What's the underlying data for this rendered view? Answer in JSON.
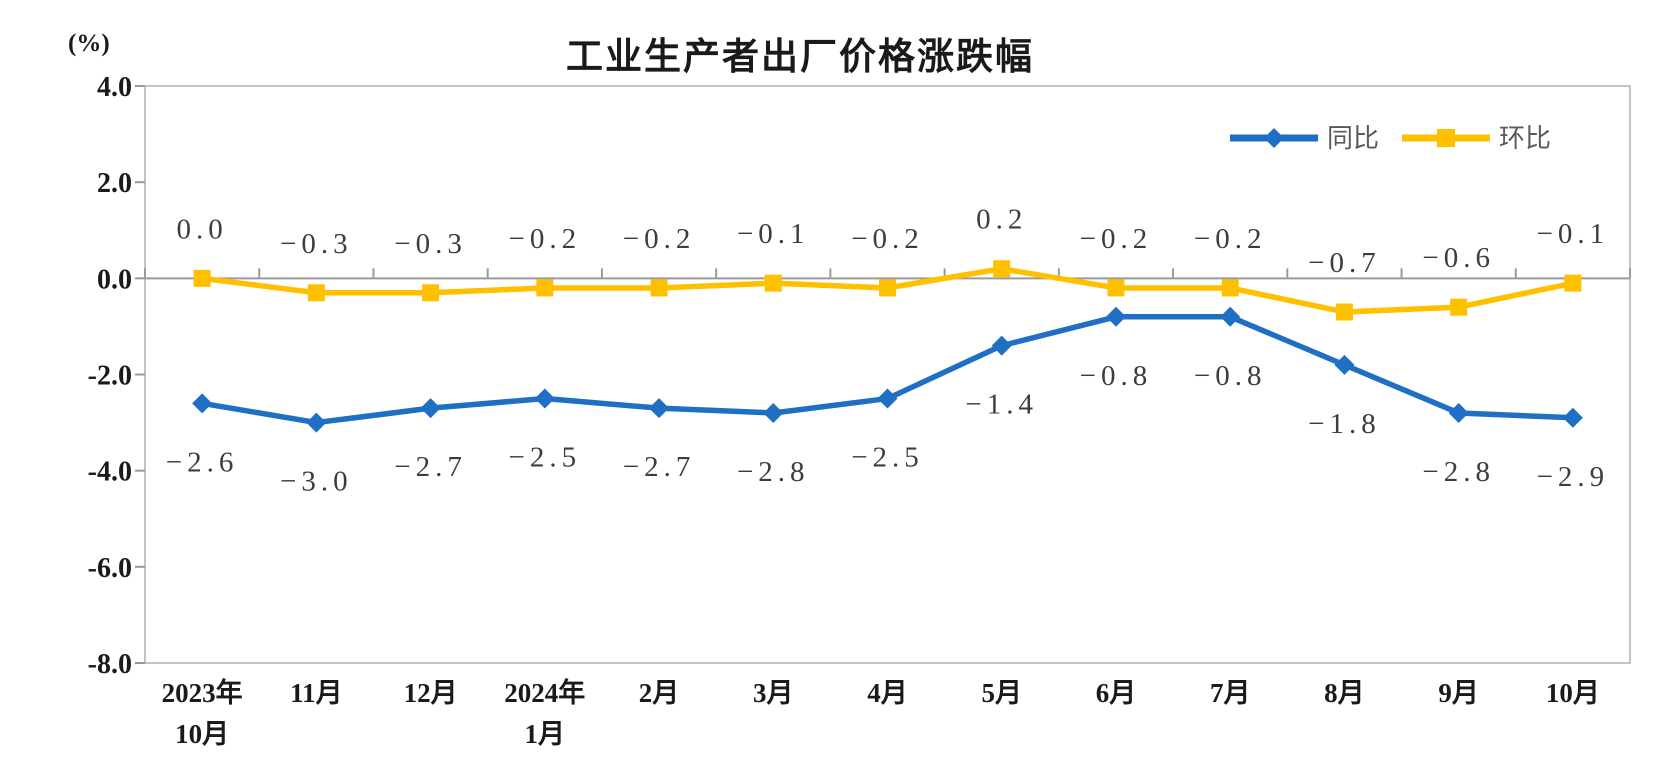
{
  "chart_data": {
    "type": "line",
    "title": "工业生产者出厂价格涨跌幅",
    "ylabel": "(%)",
    "categories": [
      [
        "2023年",
        "10月"
      ],
      [
        "11月"
      ],
      [
        "12月"
      ],
      [
        "2024年",
        "1月"
      ],
      [
        "2月"
      ],
      [
        "3月"
      ],
      [
        "4月"
      ],
      [
        "5月"
      ],
      [
        "6月"
      ],
      [
        "7月"
      ],
      [
        "8月"
      ],
      [
        "9月"
      ],
      [
        "10月"
      ]
    ],
    "series": [
      {
        "name": "同比",
        "color": "#1f6fc5",
        "marker": "diamond",
        "label_position": "below",
        "values": [
          -2.6,
          -3.0,
          -2.7,
          -2.5,
          -2.7,
          -2.8,
          -2.5,
          -1.4,
          -0.8,
          -0.8,
          -1.8,
          -2.8,
          -2.9
        ]
      },
      {
        "name": "环比",
        "color": "#ffc000",
        "marker": "square",
        "label_position": "above",
        "values": [
          0.0,
          -0.3,
          -0.3,
          -0.2,
          -0.2,
          -0.1,
          -0.2,
          0.2,
          -0.2,
          -0.2,
          -0.7,
          -0.6,
          -0.1
        ]
      }
    ],
    "ylim": [
      -8.0,
      4.0
    ],
    "yticks": [
      4.0,
      2.0,
      0.0,
      -2.0,
      -4.0,
      -6.0,
      -8.0
    ],
    "legend_position": "top-right",
    "grid": false,
    "colors": {
      "axis_border": "#c4c4c4",
      "zero_line": "#9a9a9a",
      "tick": "#9a9a9a",
      "label_text": "#3d3d3d"
    }
  }
}
